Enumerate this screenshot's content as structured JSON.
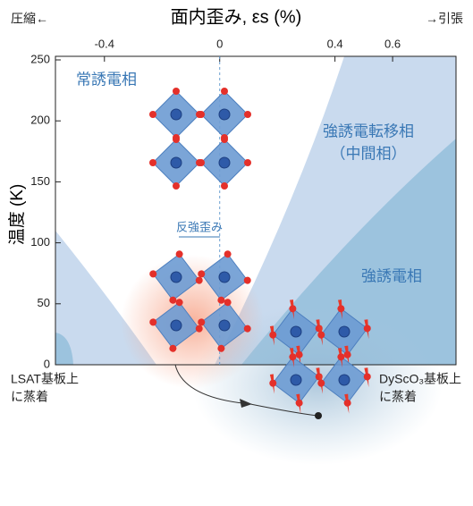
{
  "chart_data": {
    "type": "phase-diagram",
    "title": "面内歪み, εs (%)",
    "y_label": "温度 (K)",
    "xlim": [
      -0.57,
      0.82
    ],
    "xticks": [
      -0.4,
      0,
      0.4,
      0.6
    ],
    "ylim": [
      0,
      250
    ],
    "yticks": [
      0,
      50,
      100,
      150,
      200,
      250
    ],
    "annotations": {
      "left_arrow": "圧縮←",
      "right_arrow": "→引張",
      "paraelectric": "常誘電相",
      "intermediate_1": "強誘電転移相",
      "intermediate_2": "（中間相）",
      "ferroelectric": "強誘電相",
      "antistrain": "反強歪み",
      "lsat_1": "LSAT基板上",
      "lsat_2": "に蒸着",
      "dysco_1": "DyScO₃基板上",
      "dysco_2": "に蒸着"
    }
  }
}
